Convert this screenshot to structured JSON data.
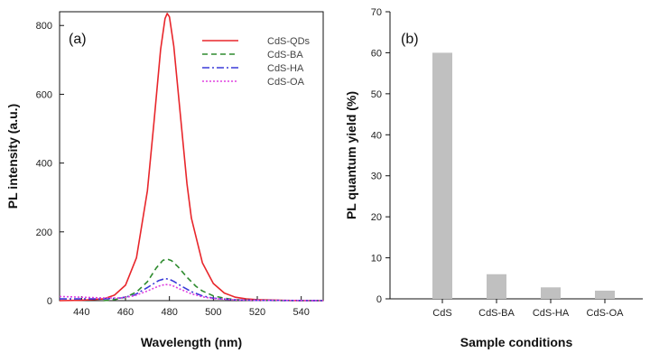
{
  "chart_data": [
    {
      "type": "line",
      "panel_label": "(a)",
      "xlabel": "Wavelength (nm)",
      "ylabel": "PL intensity (a.u.)",
      "xlim": [
        430,
        550
      ],
      "ylim": [
        0,
        840
      ],
      "x_ticks": [
        440,
        460,
        480,
        500,
        520,
        540
      ],
      "y_ticks": [
        0,
        200,
        400,
        600,
        800
      ],
      "legend_position": "top-right",
      "series": [
        {
          "name": "CdS-QDs",
          "color": "#e8262b",
          "dash": "solid",
          "x": [
            430,
            440,
            450,
            455,
            460,
            465,
            470,
            473,
            476,
            478,
            479,
            480,
            482,
            485,
            488,
            490,
            495,
            500,
            505,
            510,
            515,
            520,
            530,
            540,
            550
          ],
          "y": [
            0,
            1,
            5,
            16,
            45,
            125,
            320,
            520,
            730,
            820,
            835,
            825,
            740,
            540,
            340,
            240,
            110,
            50,
            22,
            10,
            5,
            3,
            1,
            0,
            0
          ]
        },
        {
          "name": "CdS-BA",
          "color": "#2e8b2e",
          "dash": "6,4",
          "x": [
            450,
            455,
            460,
            465,
            470,
            474,
            477,
            479,
            481,
            484,
            488,
            492,
            495,
            500,
            505,
            510,
            520,
            530,
            550
          ],
          "y": [
            0,
            3,
            10,
            25,
            55,
            95,
            117,
            121,
            116,
            98,
            68,
            42,
            28,
            14,
            7,
            3,
            1,
            0,
            0
          ]
        },
        {
          "name": "CdS-HA",
          "color": "#3a3ad8",
          "dash": "8,3,2,3",
          "x": [
            430,
            440,
            450,
            458,
            464,
            470,
            475,
            478,
            480,
            482,
            485,
            490,
            495,
            500,
            510,
            520,
            550
          ],
          "y": [
            5,
            5,
            5,
            8,
            16,
            38,
            58,
            64,
            62,
            56,
            44,
            26,
            14,
            7,
            2,
            1,
            0
          ]
        },
        {
          "name": "CdS-OA",
          "color": "#e040e0",
          "dash": "2,2",
          "x": [
            430,
            440,
            450,
            458,
            464,
            470,
            475,
            478,
            480,
            482,
            485,
            490,
            495,
            500,
            510,
            520,
            550
          ],
          "y": [
            12,
            10,
            8,
            8,
            14,
            28,
            42,
            47,
            46,
            42,
            33,
            20,
            11,
            6,
            2,
            1,
            0
          ]
        }
      ]
    },
    {
      "type": "bar",
      "panel_label": "(b)",
      "xlabel": "Sample conditions",
      "ylabel": "PL quantum yield (%)",
      "ylim": [
        0,
        70
      ],
      "y_ticks": [
        0,
        10,
        20,
        30,
        40,
        50,
        60,
        70
      ],
      "categories": [
        "CdS",
        "CdS-BA",
        "CdS-HA",
        "CdS-OA"
      ],
      "values": [
        60,
        6,
        2.8,
        2
      ],
      "bar_color": "#c0c0c0"
    }
  ]
}
